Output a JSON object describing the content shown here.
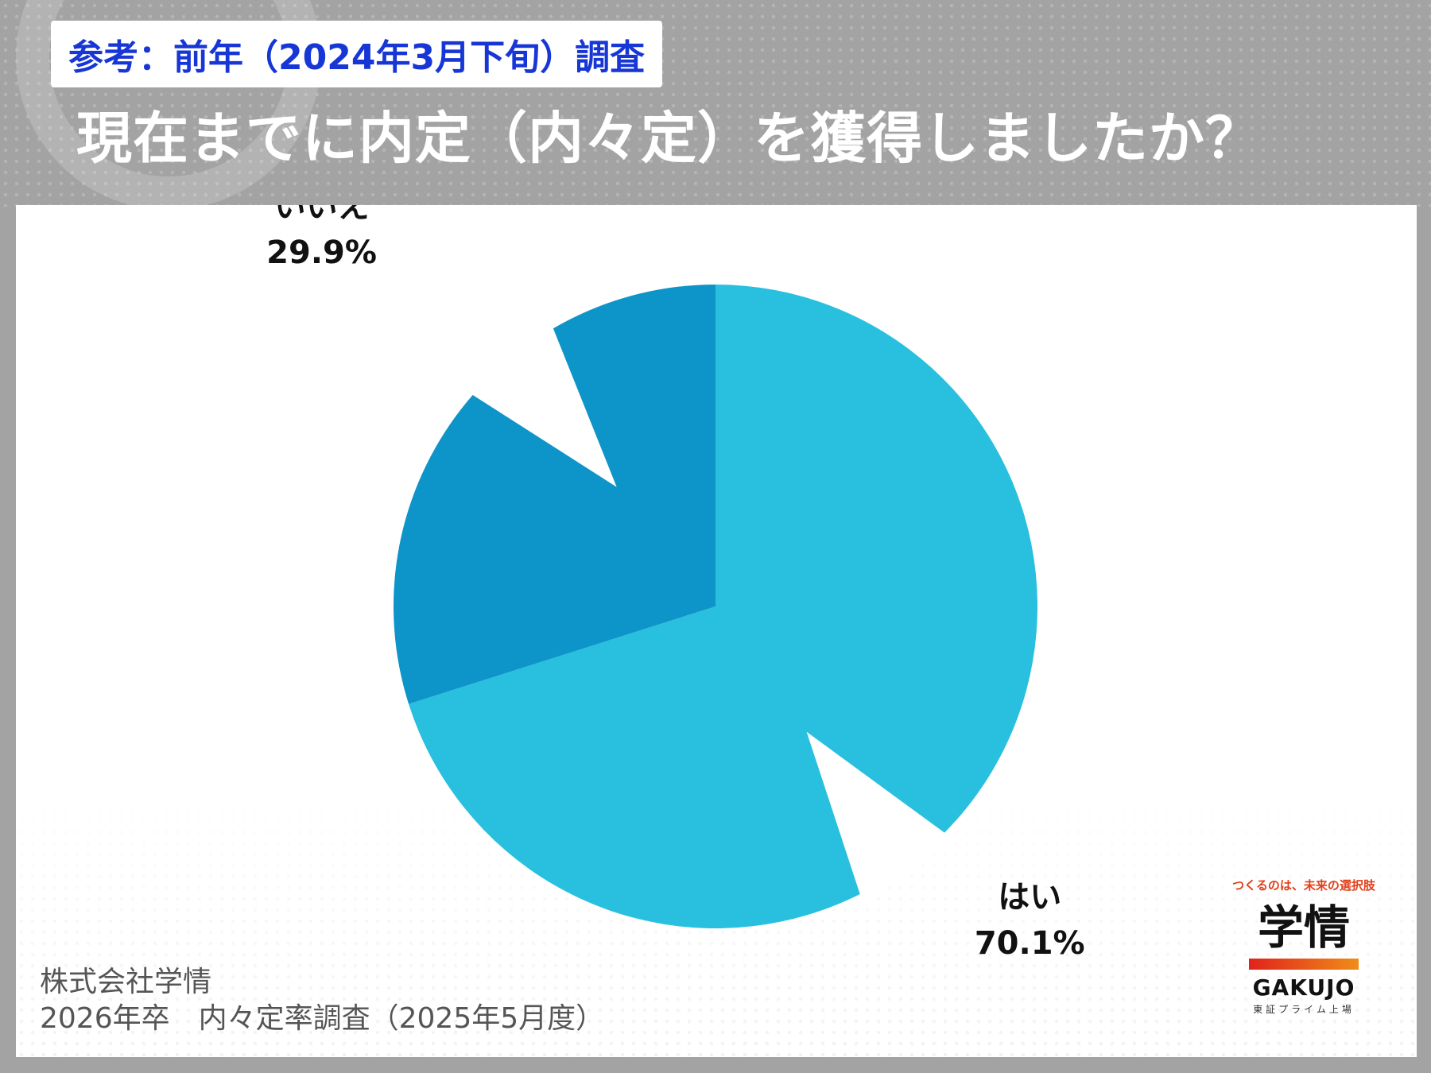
{
  "header": {
    "tag": "参考：前年（2024年3月下旬）調査",
    "question": "現在までに内定（内々定）を獲得しましたか？"
  },
  "chart_data": {
    "type": "pie",
    "title": "",
    "slices": [
      {
        "label": "はい",
        "value": 70.1,
        "value_label": "70.1%",
        "color": "#29bfdf"
      },
      {
        "label": "いいえ",
        "value": 29.9,
        "value_label": "29.9%",
        "color": "#0d94c8"
      }
    ],
    "start": "12 o'clock, clockwise",
    "legend": "none (labels beside slices)"
  },
  "source": {
    "line1": "株式会社学情",
    "line2": "2026年卒　内々定率調査（2025年5月度）"
  },
  "logo": {
    "tagline": "つくるのは、未来の選択肢",
    "mark": "学情",
    "brand": "GAKUJO",
    "sub": "東証プライム上場",
    "bar_color": "#e0231b"
  }
}
